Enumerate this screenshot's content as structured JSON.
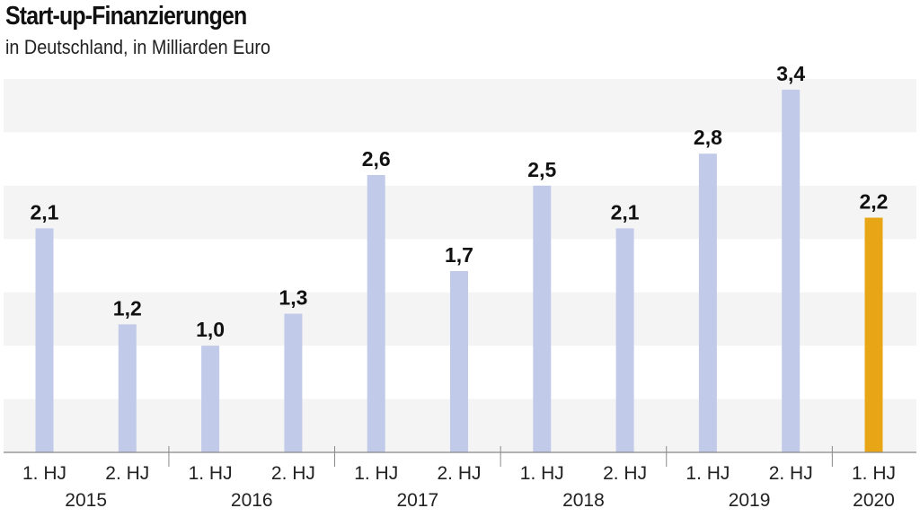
{
  "chart_data": {
    "type": "bar",
    "title": "Start-up-Finanzierungen",
    "subtitle": "in Deutschland, in Milliarden Euro",
    "categories": [
      "1. HJ",
      "2. HJ",
      "1. HJ",
      "2. HJ",
      "1. HJ",
      "2. HJ",
      "1. HJ",
      "2. HJ",
      "1. HJ",
      "2. HJ",
      "1. HJ"
    ],
    "years": [
      "2015",
      "2016",
      "2017",
      "2018",
      "2019",
      "2020"
    ],
    "values": [
      2.1,
      1.2,
      1.0,
      1.3,
      2.6,
      1.7,
      2.5,
      2.1,
      2.8,
      3.4,
      2.2
    ],
    "value_labels": [
      "2,1",
      "1,2",
      "1,0",
      "1,3",
      "2,6",
      "1,7",
      "2,5",
      "2,1",
      "2,8",
      "3,4",
      "2,2"
    ],
    "highlight_index": 10,
    "ylim": [
      0,
      3.5
    ],
    "band_step": 0.5,
    "xlabel": "",
    "ylabel": "",
    "colors": {
      "bar": "#c1cae8",
      "highlight": "#e8a617",
      "band": "#f4f4f4",
      "axis": "#888888"
    }
  }
}
